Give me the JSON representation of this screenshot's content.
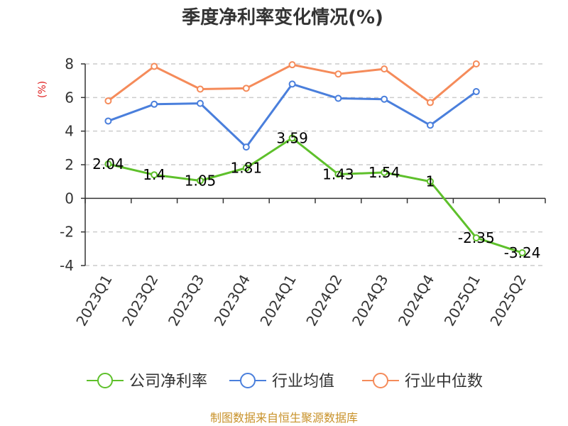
{
  "chart_data": {
    "type": "line",
    "title": "季度净利率变化情况(%)",
    "ylabel": "(%)",
    "categories": [
      "2023Q1",
      "2023Q2",
      "2023Q3",
      "2023Q4",
      "2024Q1",
      "2024Q2",
      "2024Q3",
      "2024Q4",
      "2025Q1",
      "2025Q2"
    ],
    "ylim": [
      -4,
      8
    ],
    "yticks": [
      -4,
      -2,
      0,
      2,
      4,
      6,
      8
    ],
    "grid": true,
    "legend_position": "bottom",
    "series": [
      {
        "name": "公司净利率",
        "color": "#5ec02b",
        "values": [
          2.04,
          1.4,
          1.05,
          1.81,
          3.59,
          1.43,
          1.54,
          1,
          -2.35,
          -3.24
        ],
        "labels": [
          "2.04",
          "1.4",
          "1.05",
          "1.81",
          "3.59",
          "1.43",
          "1.54",
          "1",
          "-2.35",
          "-3.24"
        ]
      },
      {
        "name": "行业均值",
        "color": "#4a7fdc",
        "values": [
          4.6,
          5.6,
          5.65,
          3.05,
          6.8,
          5.95,
          5.9,
          4.35,
          6.35,
          null
        ]
      },
      {
        "name": "行业中位数",
        "color": "#f58b5a",
        "values": [
          5.8,
          7.85,
          6.5,
          6.55,
          7.95,
          7.4,
          7.7,
          5.7,
          8.0,
          null
        ]
      }
    ]
  },
  "source_text": "制图数据来自恒生聚源数据库",
  "colors": {
    "ylabel": "#e02020",
    "source": "#c8922a",
    "axis": "#333333",
    "grid": "#cccccc"
  }
}
